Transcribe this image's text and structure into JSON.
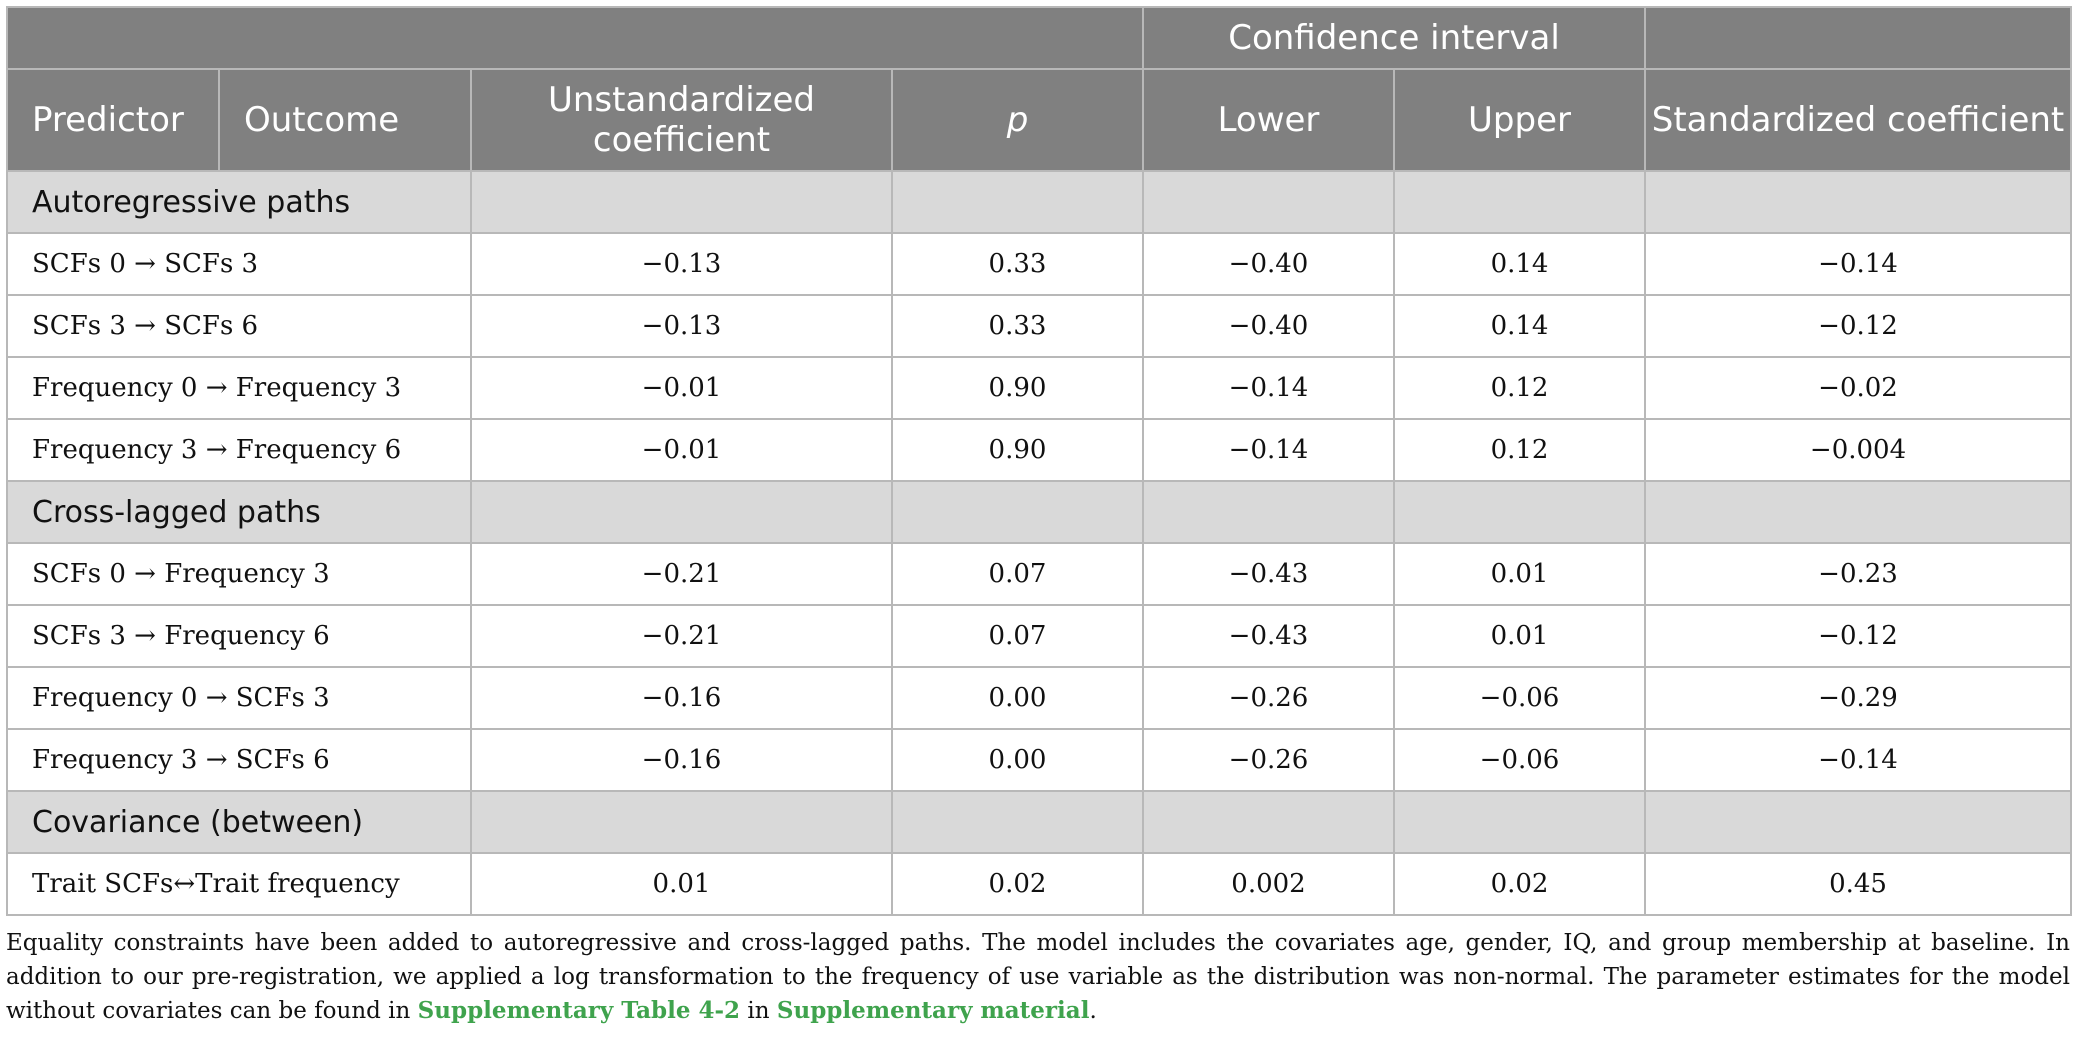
{
  "header": {
    "ci_group": "Confidence interval",
    "predictor": "Predictor",
    "outcome": "Outcome",
    "unstd": "Unstandardized coefficient",
    "p": "p",
    "lower": "Lower",
    "upper": "Upper",
    "std": "Standardized coefficient"
  },
  "sections": [
    {
      "title": "Autoregressive paths",
      "rows": [
        {
          "path": "SCFs 0 →  SCFs 3",
          "unstd": "−0.13",
          "p": "0.33",
          "lower": "−0.40",
          "upper": "0.14",
          "std": "−0.14"
        },
        {
          "path": "SCFs 3 →  SCFs 6",
          "unstd": "−0.13",
          "p": "0.33",
          "lower": "−0.40",
          "upper": "0.14",
          "std": "−0.12"
        },
        {
          "path": "Frequency 0 →  Frequency 3",
          "unstd": "−0.01",
          "p": "0.90",
          "lower": "−0.14",
          "upper": "0.12",
          "std": "−0.02"
        },
        {
          "path": "Frequency 3 →  Frequency 6",
          "unstd": "−0.01",
          "p": "0.90",
          "lower": "−0.14",
          "upper": "0.12",
          "std": "−0.004"
        }
      ]
    },
    {
      "title": "Cross-lagged paths",
      "rows": [
        {
          "path": "SCFs 0 →  Frequency 3",
          "unstd": "−0.21",
          "p": "0.07",
          "lower": "−0.43",
          "upper": "0.01",
          "std": "−0.23"
        },
        {
          "path": "SCFs 3 →  Frequency 6",
          "unstd": "−0.21",
          "p": "0.07",
          "lower": "−0.43",
          "upper": "0.01",
          "std": "−0.12"
        },
        {
          "path": "Frequency 0 →  SCFs 3",
          "unstd": "−0.16",
          "p": "0.00",
          "lower": "−0.26",
          "upper": "−0.06",
          "std": "−0.29"
        },
        {
          "path": "Frequency 3 →  SCFs 6",
          "unstd": "−0.16",
          "p": "0.00",
          "lower": "−0.26",
          "upper": "−0.06",
          "std": "−0.14"
        }
      ]
    },
    {
      "title": "Covariance (between)",
      "rows": [
        {
          "path": "Trait SCFs↔Trait frequency",
          "unstd": "0.01",
          "p": "0.02",
          "lower": "0.002",
          "upper": "0.02",
          "std": "0.45"
        }
      ]
    }
  ],
  "footnote": {
    "text": "Equality constraints have been added to autoregressive and cross-lagged paths. The model includes the covariates age, gender, IQ, and group membership at baseline. In addition to our pre-registration, we applied a log transformation to the frequency of use variable as the distribution was non-normal. The parameter estimates for the model without covariates can be found in ",
    "link1": "Supplementary Table 4-2",
    "between": " in ",
    "link2": "Supplementary material",
    "end": "."
  }
}
